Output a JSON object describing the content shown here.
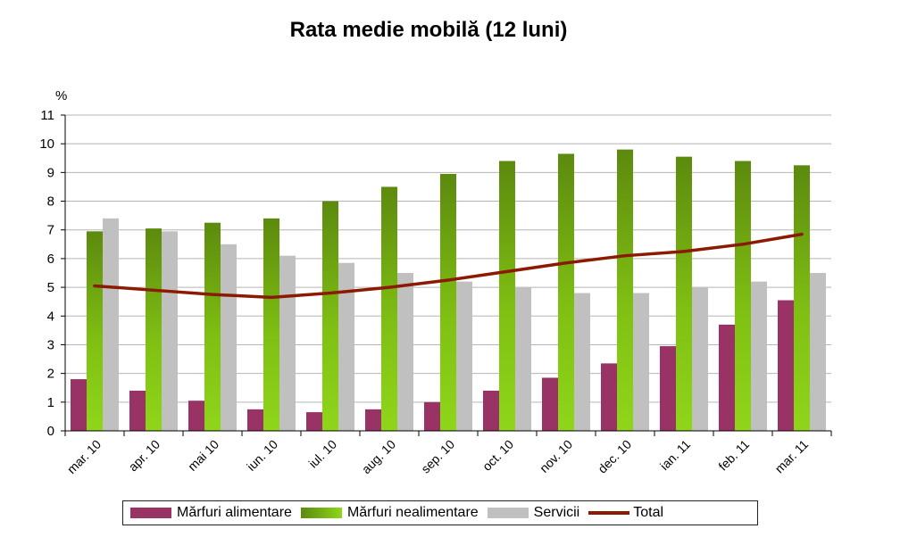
{
  "chart_data": {
    "type": "bar",
    "title": "Rata medie mobilă (12 luni)",
    "ylabel": "%",
    "xlabel": "",
    "ylim": [
      0,
      11
    ],
    "yticks": [
      0,
      1,
      2,
      3,
      4,
      5,
      6,
      7,
      8,
      9,
      10,
      11
    ],
    "grid": true,
    "legend_position": "bottom",
    "categories": [
      "mar. 10",
      "apr. 10",
      "mai 10",
      "iun. 10",
      "iul. 10",
      "aug. 10",
      "sep. 10",
      "oct. 10",
      "nov. 10",
      "dec. 10",
      "ian. 11",
      "feb. 11",
      "mar. 11"
    ],
    "series": [
      {
        "name": "Mărfuri alimentare",
        "type": "bar",
        "color": "#993366",
        "values": [
          1.8,
          1.4,
          1.05,
          0.75,
          0.65,
          0.75,
          1.0,
          1.4,
          1.85,
          2.35,
          2.95,
          3.7,
          4.55
        ]
      },
      {
        "name": "Mărfuri nealimentare",
        "type": "bar",
        "color": "#669900",
        "values": [
          6.95,
          7.05,
          7.25,
          7.4,
          8.0,
          8.5,
          8.95,
          9.4,
          9.65,
          9.8,
          9.55,
          9.4,
          9.25
        ]
      },
      {
        "name": "Servicii",
        "type": "bar",
        "color": "#c0c0c0",
        "values": [
          7.4,
          6.95,
          6.5,
          6.1,
          5.85,
          5.5,
          5.2,
          5.0,
          4.8,
          4.8,
          5.0,
          5.2,
          5.5
        ]
      },
      {
        "name": "Total",
        "type": "line",
        "color": "#8b1a00",
        "values": [
          5.05,
          4.9,
          4.75,
          4.65,
          4.8,
          5.0,
          5.25,
          5.55,
          5.85,
          6.1,
          6.25,
          6.5,
          6.85
        ]
      }
    ]
  }
}
